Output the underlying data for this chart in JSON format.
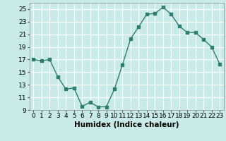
{
  "x": [
    0,
    1,
    2,
    3,
    4,
    5,
    6,
    7,
    8,
    9,
    10,
    11,
    12,
    13,
    14,
    15,
    16,
    17,
    18,
    19,
    20,
    21,
    22,
    23
  ],
  "y": [
    17,
    16.8,
    17,
    14.3,
    12.3,
    12.5,
    9.6,
    10.2,
    9.5,
    9.5,
    12.3,
    16.2,
    20.3,
    22.2,
    24.2,
    24.3,
    25.3,
    24.2,
    22.3,
    21.3,
    21.3,
    20.2,
    19.0,
    16.3
  ],
  "line_color": "#2e7d6e",
  "marker": "s",
  "marker_size": 2.5,
  "bg_color": "#c8ebe8",
  "grid_color": "#ffffff",
  "xlabel": "Humidex (Indice chaleur)",
  "ylim": [
    9,
    26
  ],
  "xlim": [
    -0.5,
    23.5
  ],
  "yticks": [
    9,
    11,
    13,
    15,
    17,
    19,
    21,
    23,
    25
  ],
  "xticks": [
    0,
    1,
    2,
    3,
    4,
    5,
    6,
    7,
    8,
    9,
    10,
    11,
    12,
    13,
    14,
    15,
    16,
    17,
    18,
    19,
    20,
    21,
    22,
    23
  ],
  "xlabel_fontsize": 7.5,
  "tick_fontsize": 6.5,
  "line_width": 1.0
}
